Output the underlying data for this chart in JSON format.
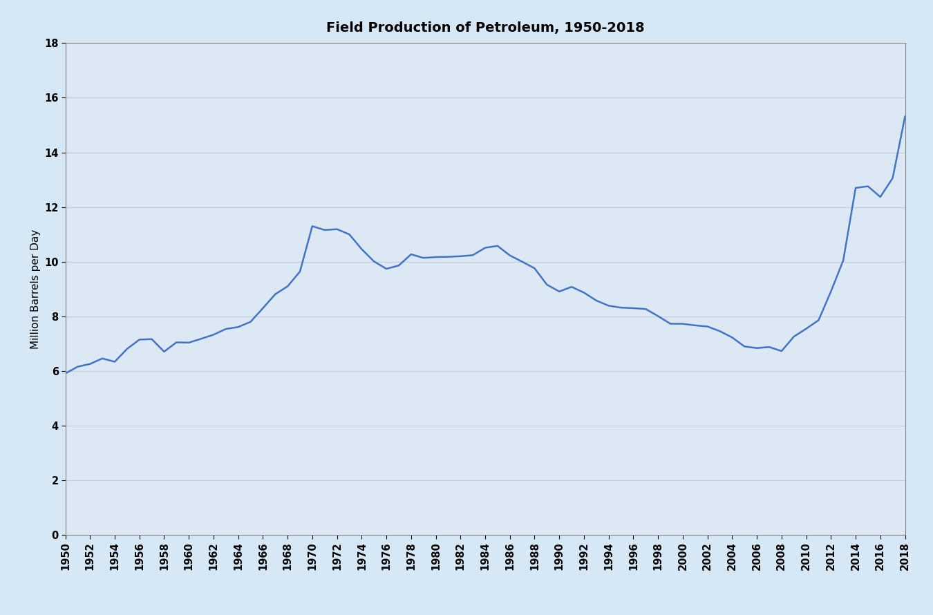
{
  "title": "Field Production of Petroleum, 1950-2018",
  "xlabel": "",
  "ylabel": "Million Barrels per Day",
  "background_color": "#d6e8f5",
  "plot_bg_color": "#dce9f5",
  "line_color": "#4472c4",
  "line_width": 1.8,
  "ylim": [
    0,
    18
  ],
  "xlim": [
    1950,
    2018
  ],
  "years": [
    1950,
    1951,
    1952,
    1953,
    1954,
    1955,
    1956,
    1957,
    1958,
    1959,
    1960,
    1961,
    1962,
    1963,
    1964,
    1965,
    1966,
    1967,
    1968,
    1969,
    1970,
    1971,
    1972,
    1973,
    1974,
    1975,
    1976,
    1977,
    1978,
    1979,
    1980,
    1981,
    1982,
    1983,
    1984,
    1985,
    1986,
    1987,
    1988,
    1989,
    1990,
    1991,
    1992,
    1993,
    1994,
    1995,
    1996,
    1997,
    1998,
    1999,
    2000,
    2001,
    2002,
    2003,
    2004,
    2005,
    2006,
    2007,
    2008,
    2009,
    2010,
    2011,
    2012,
    2013,
    2014,
    2015,
    2016,
    2017,
    2018
  ],
  "values": [
    5.91,
    6.16,
    6.26,
    6.46,
    6.34,
    6.81,
    7.15,
    7.17,
    6.71,
    7.05,
    7.04,
    7.18,
    7.33,
    7.54,
    7.61,
    7.8,
    8.3,
    8.81,
    9.1,
    9.64,
    11.3,
    11.16,
    11.19,
    11.0,
    10.46,
    10.01,
    9.74,
    9.86,
    10.27,
    10.14,
    10.17,
    10.18,
    10.2,
    10.24,
    10.51,
    10.58,
    10.23,
    10.0,
    9.76,
    9.16,
    8.91,
    9.08,
    8.87,
    8.58,
    8.39,
    8.32,
    8.3,
    8.27,
    8.01,
    7.73,
    7.73,
    7.67,
    7.63,
    7.46,
    7.23,
    6.9,
    6.84,
    6.88,
    6.73,
    7.26,
    7.55,
    7.86,
    8.91,
    10.05,
    12.7,
    12.76,
    12.37,
    13.06,
    15.31
  ],
  "grid_color": "#c0cfd8",
  "spine_color": "#808080",
  "tick_label_fontsize": 10.5,
  "ylabel_fontsize": 11,
  "title_fontsize": 14
}
